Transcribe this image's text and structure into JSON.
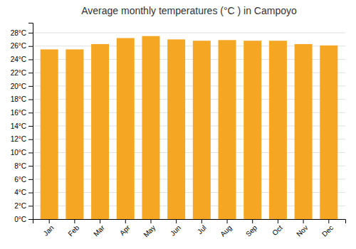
{
  "chart_data": {
    "type": "bar",
    "title": "Average monthly temperatures (°C ) in Campoyo",
    "categories": [
      "Jan",
      "Feb",
      "Mar",
      "Apr",
      "May",
      "Jun",
      "Jul",
      "Aug",
      "Sep",
      "Oct",
      "Nov",
      "Dec"
    ],
    "values": [
      25.5,
      25.5,
      26.3,
      27.2,
      27.5,
      27.0,
      26.8,
      26.9,
      26.8,
      26.8,
      26.3,
      26.1
    ],
    "color": "#F5A623",
    "ylim": [
      0,
      29.5
    ],
    "yticks": [
      {
        "value": 0,
        "label": "0°C"
      },
      {
        "value": 2,
        "label": "2°C"
      },
      {
        "value": 4,
        "label": "4°C"
      },
      {
        "value": 6,
        "label": "6°C"
      },
      {
        "value": 8,
        "label": "8°C"
      },
      {
        "value": 10,
        "label": "10°C"
      },
      {
        "value": 12,
        "label": "12°C"
      },
      {
        "value": 14,
        "label": "14°C"
      },
      {
        "value": 16,
        "label": "16°C"
      },
      {
        "value": 18,
        "label": "18°C"
      },
      {
        "value": 20,
        "label": "20°C"
      },
      {
        "value": 22,
        "label": "22°C"
      },
      {
        "value": 24,
        "label": "24°C"
      },
      {
        "value": 26,
        "label": "26°C"
      },
      {
        "value": 28,
        "label": "28°C"
      }
    ],
    "grid": true
  }
}
